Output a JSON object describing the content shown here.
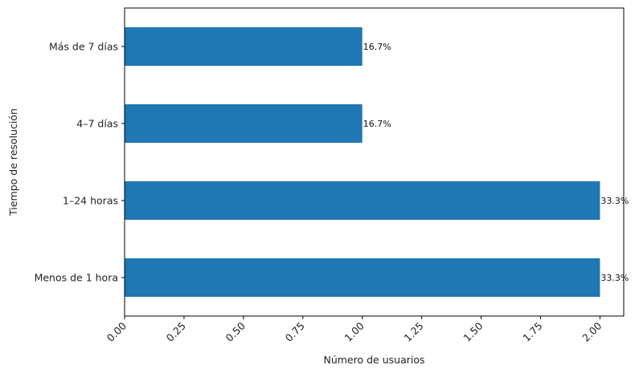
{
  "chart_data": {
    "type": "bar",
    "orientation": "horizontal",
    "categories": [
      "Menos de 1 hora",
      "1–24 horas",
      "4–7 días",
      "Más de 7 días"
    ],
    "values": [
      2,
      2,
      1,
      1
    ],
    "data_labels": [
      "33.3%",
      "33.3%",
      "16.7%",
      "16.7%"
    ],
    "xlabel": "Número de usuarios",
    "ylabel": "Tiempo de resolución",
    "xlim": [
      0,
      2.1
    ],
    "x_ticks": [
      0.0,
      0.25,
      0.5,
      0.75,
      1.0,
      1.25,
      1.5,
      1.75,
      2.0
    ],
    "x_tick_labels": [
      "0.00",
      "0.25",
      "0.50",
      "0.75",
      "1.00",
      "1.25",
      "1.50",
      "1.75",
      "2.00"
    ],
    "grid": false,
    "bar_color": "#1f77b4"
  }
}
